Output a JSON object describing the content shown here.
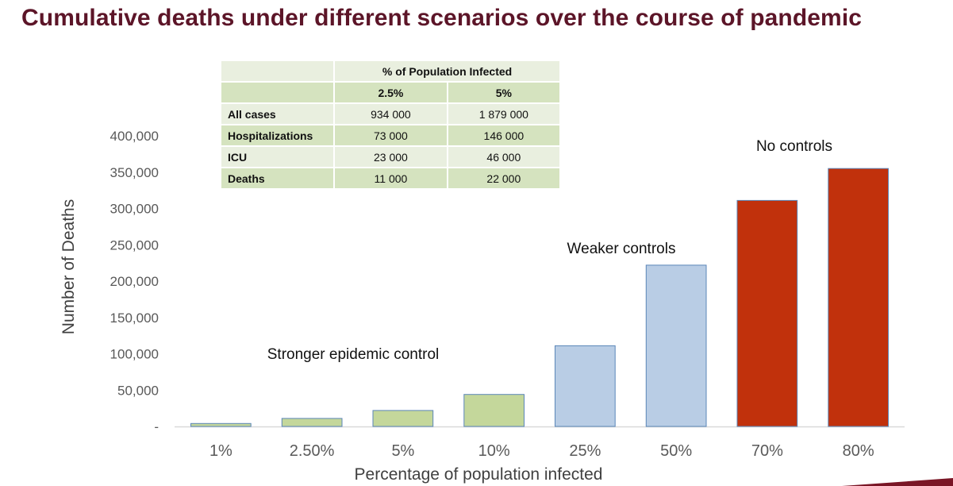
{
  "title": "Cumulative deaths under different scenarios over the course of pandemic",
  "chart_data": {
    "type": "bar",
    "categories": [
      "1%",
      "2.50%",
      "5%",
      "10%",
      "25%",
      "50%",
      "70%",
      "80%"
    ],
    "values": [
      4000,
      11000,
      22000,
      44000,
      111000,
      222000,
      311000,
      355000
    ],
    "bar_colors": [
      "#c4d79b",
      "#c4d79b",
      "#c4d79b",
      "#c4d79b",
      "#b9cde5",
      "#b9cde5",
      "#c1310c",
      "#c1310c"
    ],
    "bar_outline_color": "#5b86b8",
    "ylim": [
      0,
      400000
    ],
    "y_ticks": [
      0,
      50000,
      100000,
      150000,
      200000,
      250000,
      300000,
      350000,
      400000
    ],
    "y_tick_labels": [
      "-",
      "50,000",
      "100,000",
      "150,000",
      "200,000",
      "250,000",
      "300,000",
      "350,000",
      "400,000"
    ],
    "xlabel": "Percentage of population infected",
    "ylabel": "Number of Deaths",
    "grid": false,
    "annotations": [
      "Stronger epidemic control",
      "Weaker controls",
      "No controls"
    ]
  },
  "table": {
    "header": "% of Population Infected",
    "columns": [
      "2.5%",
      "5%"
    ],
    "rows": [
      {
        "label": "All cases",
        "values": [
          "934 000",
          "1 879 000"
        ]
      },
      {
        "label": "Hospitalizations",
        "values": [
          "73 000",
          "146 000"
        ]
      },
      {
        "label": "ICU",
        "values": [
          "23 000",
          "46 000"
        ]
      },
      {
        "label": "Deaths",
        "values": [
          "11 000",
          "22 000"
        ]
      }
    ]
  },
  "colors": {
    "title": "#5c1528",
    "table_light": "#e9efdf",
    "table_dark": "#d5e3bf",
    "accent": "#7a1626"
  }
}
